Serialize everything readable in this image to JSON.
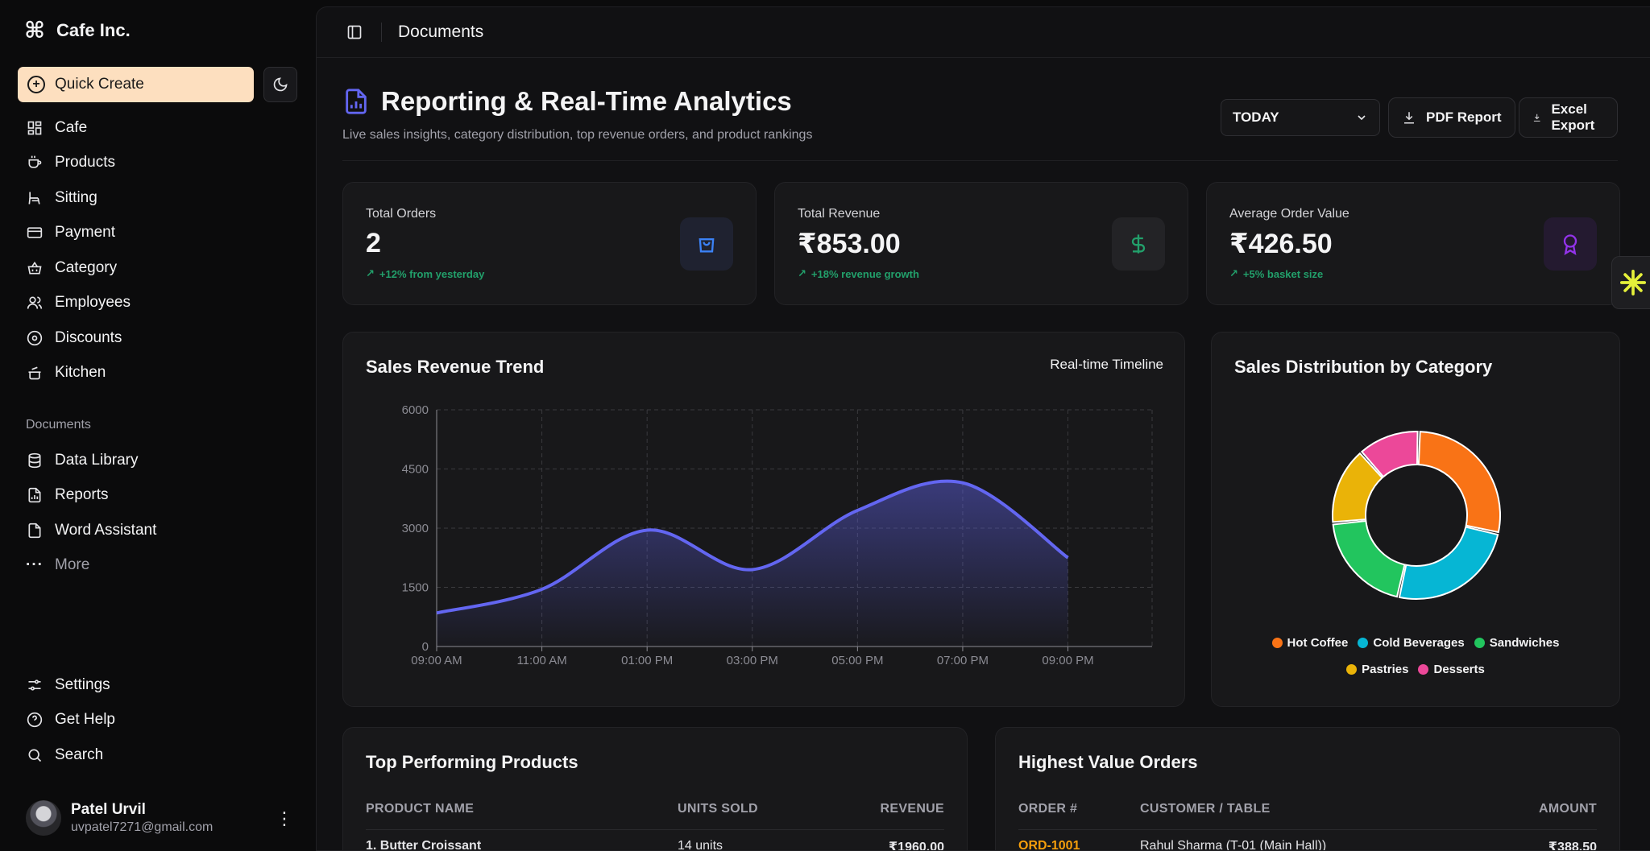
{
  "sidebar": {
    "brand": "Cafe Inc.",
    "quick_create": "Quick Create",
    "nav": [
      {
        "label": "Cafe",
        "icon": "dashboard-icon"
      },
      {
        "label": "Products",
        "icon": "coffee-cup-icon"
      },
      {
        "label": "Sitting",
        "icon": "chair-icon"
      },
      {
        "label": "Payment",
        "icon": "credit-card-icon"
      },
      {
        "label": "Category",
        "icon": "basket-icon"
      },
      {
        "label": "Employees",
        "icon": "users-icon"
      },
      {
        "label": "Discounts",
        "icon": "disc-icon"
      },
      {
        "label": "Kitchen",
        "icon": "cooking-pot-icon"
      }
    ],
    "documents_label": "Documents",
    "documents": [
      {
        "label": "Data Library",
        "icon": "database-icon"
      },
      {
        "label": "Reports",
        "icon": "report-file-icon"
      },
      {
        "label": "Word Assistant",
        "icon": "file-icon"
      },
      {
        "label": "More",
        "icon": "more-dots-icon"
      }
    ],
    "footer": [
      {
        "label": "Settings",
        "icon": "settings-sliders-icon"
      },
      {
        "label": "Get Help",
        "icon": "help-circle-icon"
      },
      {
        "label": "Search",
        "icon": "search-icon"
      }
    ],
    "user": {
      "name": "Patel Urvil",
      "email": "uvpatel7271@gmail.com"
    }
  },
  "topbar": {
    "breadcrumb": "Documents"
  },
  "header": {
    "title": "Reporting & Real-Time Analytics",
    "subtitle": "Live sales insights, category distribution, top revenue orders, and product rankings",
    "range": "TODAY",
    "pdf_button": "PDF Report",
    "excel_button": "Excel Export"
  },
  "stats": [
    {
      "label": "Total Orders",
      "value": "2",
      "delta": "+12% from yesterday",
      "icon": "shopping-bag-icon",
      "accent": "#3b82f6"
    },
    {
      "label": "Total Revenue",
      "value": "₹853.00",
      "delta": "+18% revenue growth",
      "icon": "dollar-icon",
      "accent": "#22a06b"
    },
    {
      "label": "Average Order Value",
      "value": "₹426.50",
      "delta": "+5% basket size",
      "icon": "award-icon",
      "accent": "#9333ea"
    }
  ],
  "trend": {
    "title": "Sales Revenue Trend",
    "badge": "Real-time Timeline"
  },
  "distribution": {
    "title": "Sales Distribution by Category"
  },
  "chart_data": [
    {
      "type": "area",
      "title": "Sales Revenue Trend",
      "x": [
        "09:00 AM",
        "11:00 AM",
        "01:00 PM",
        "03:00 PM",
        "05:00 PM",
        "07:00 PM",
        "09:00 PM"
      ],
      "y_points": [
        {
          "x": "09:00 AM",
          "y": 850
        },
        {
          "x": "11:00 AM",
          "y": 1450
        },
        {
          "x": "01:00 PM",
          "y": 2950
        },
        {
          "x": "03:00 PM",
          "y": 1950
        },
        {
          "x": "05:00 PM",
          "y": 3450
        },
        {
          "x": "07:00 PM",
          "y": 4150
        },
        {
          "x": "end",
          "y": 2250
        }
      ],
      "yticks": [
        0,
        1500,
        3000,
        4500,
        6000
      ],
      "ylim": [
        0,
        6000
      ],
      "grid": true,
      "color": "#6366f1"
    },
    {
      "type": "pie",
      "title": "Sales Distribution by Category",
      "labels": [
        "Hot Coffee",
        "Cold Beverages",
        "Sandwiches",
        "Pastries",
        "Desserts"
      ],
      "values": [
        28,
        25,
        20,
        15,
        12
      ],
      "colors": [
        "#f97316",
        "#06b6d4",
        "#22c55e",
        "#eab308",
        "#ec4899"
      ],
      "legend": "bottom"
    }
  ],
  "top_products": {
    "title": "Top Performing Products",
    "columns": [
      "PRODUCT NAME",
      "UNITS SOLD",
      "REVENUE"
    ],
    "rows": [
      [
        "1. Butter Croissant",
        "14 units",
        "₹1960.00"
      ]
    ]
  },
  "top_orders": {
    "title": "Highest Value Orders",
    "columns": [
      "ORDER #",
      "CUSTOMER / TABLE",
      "AMOUNT"
    ],
    "rows": [
      [
        "ORD-1001",
        "Rahul Sharma (T-01 (Main Hall))",
        "₹388.50"
      ]
    ],
    "accent": "#f59e0b"
  }
}
